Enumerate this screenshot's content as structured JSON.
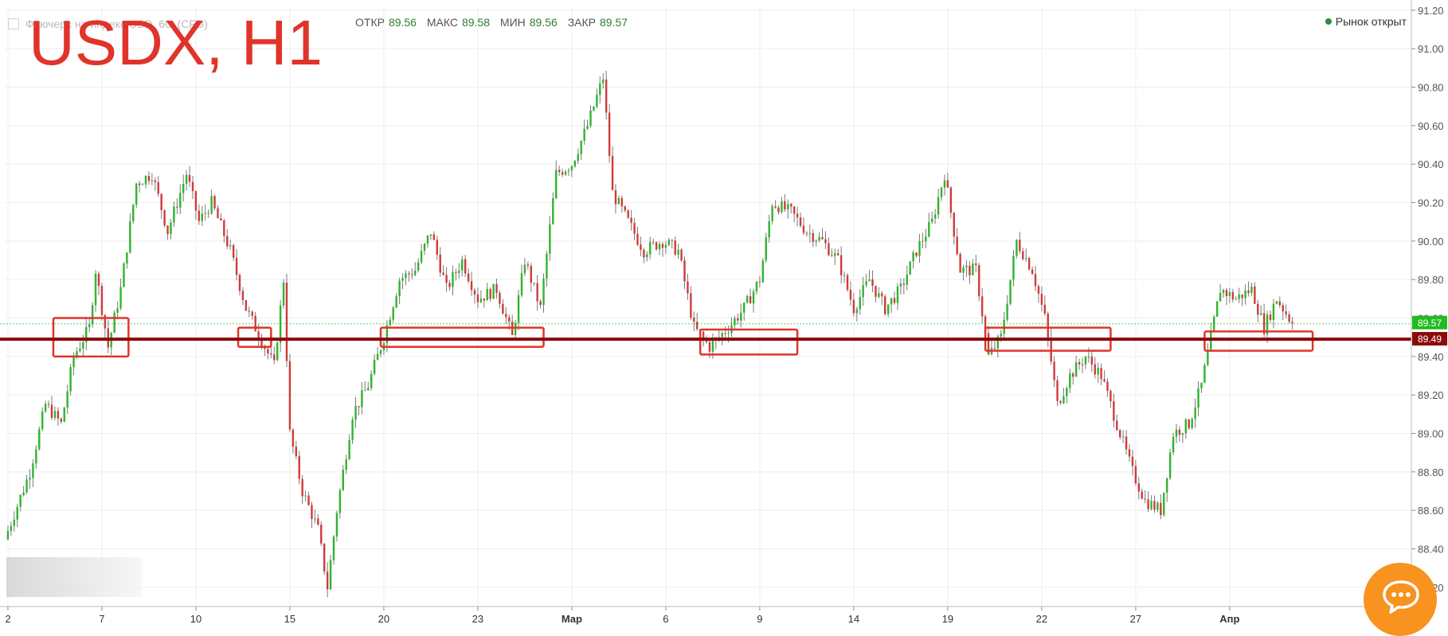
{
  "header": {
    "instrument": "Фьючерс на индекс USD, 60, (CFD)",
    "overlay_title": "USDX, H1",
    "ohlc": [
      {
        "label": "ОТКР",
        "value": "89.56"
      },
      {
        "label": "МАКС",
        "value": "89.58"
      },
      {
        "label": "МИН",
        "value": "89.56"
      },
      {
        "label": "ЗАКР",
        "value": "89.57"
      }
    ],
    "market_status": "Рынок открыт"
  },
  "colors": {
    "up": "#2db52d",
    "down": "#d13a3a",
    "level_line": "#8b0a0a",
    "zone_rect": "#e0342a",
    "current_price_badge": "#22bb22",
    "level_badge": "#8b0a0a"
  },
  "chat_widget_icon": "chat-bubble-icon",
  "chart_data": {
    "type": "candlestick",
    "timeframe": "H1",
    "ylim": [
      88.1,
      91.22
    ],
    "y_ticks": [
      "91.20",
      "91.00",
      "90.80",
      "90.60",
      "90.40",
      "90.20",
      "90.00",
      "89.80",
      "89.60",
      "89.40",
      "89.20",
      "89.00",
      "88.80",
      "88.60",
      "88.40",
      "88.20"
    ],
    "x_ticks": [
      {
        "label": "2",
        "x": 0.0
      },
      {
        "label": "7",
        "x": 3.0
      },
      {
        "label": "10",
        "x": 6.0
      },
      {
        "label": "15",
        "x": 9.0
      },
      {
        "label": "20",
        "x": 12.0
      },
      {
        "label": "23",
        "x": 15.0
      },
      {
        "label": "Мар",
        "x": 18.0
      },
      {
        "label": "6",
        "x": 21.0
      },
      {
        "label": "9",
        "x": 24.0
      },
      {
        "label": "14",
        "x": 27.0
      },
      {
        "label": "19",
        "x": 30.0
      },
      {
        "label": "22",
        "x": 33.0
      },
      {
        "label": "27",
        "x": 36.0
      },
      {
        "label": "Апр",
        "x": 39.0
      }
    ],
    "xlim": [
      -0.1,
      44.8
    ],
    "price_path": [
      [
        0.0,
        88.45
      ],
      [
        0.8,
        88.8
      ],
      [
        1.3,
        89.15
      ],
      [
        1.8,
        89.05
      ],
      [
        2.2,
        89.4
      ],
      [
        2.7,
        89.55
      ],
      [
        2.9,
        89.85
      ],
      [
        3.3,
        89.45
      ],
      [
        3.7,
        89.75
      ],
      [
        4.2,
        90.3
      ],
      [
        4.7,
        90.35
      ],
      [
        5.2,
        90.05
      ],
      [
        5.8,
        90.35
      ],
      [
        6.2,
        90.1
      ],
      [
        6.6,
        90.2
      ],
      [
        7.2,
        89.95
      ],
      [
        7.7,
        89.65
      ],
      [
        8.3,
        89.45
      ],
      [
        8.6,
        89.35
      ],
      [
        8.9,
        89.8
      ],
      [
        9.1,
        89.0
      ],
      [
        9.5,
        88.7
      ],
      [
        10.0,
        88.5
      ],
      [
        10.3,
        88.2
      ],
      [
        10.6,
        88.6
      ],
      [
        11.1,
        89.1
      ],
      [
        11.6,
        89.25
      ],
      [
        12.1,
        89.5
      ],
      [
        12.6,
        89.8
      ],
      [
        13.1,
        89.85
      ],
      [
        13.6,
        90.05
      ],
      [
        14.1,
        89.75
      ],
      [
        14.6,
        89.9
      ],
      [
        15.1,
        89.7
      ],
      [
        15.7,
        89.75
      ],
      [
        16.2,
        89.5
      ],
      [
        16.6,
        89.9
      ],
      [
        17.1,
        89.65
      ],
      [
        17.6,
        90.35
      ],
      [
        18.1,
        90.4
      ],
      [
        18.6,
        90.6
      ],
      [
        19.1,
        90.85
      ],
      [
        19.4,
        90.25
      ],
      [
        19.9,
        90.1
      ],
      [
        20.4,
        89.95
      ],
      [
        21.0,
        90.0
      ],
      [
        21.5,
        89.95
      ],
      [
        22.0,
        89.55
      ],
      [
        22.5,
        89.45
      ],
      [
        23.1,
        89.55
      ],
      [
        23.6,
        89.65
      ],
      [
        24.1,
        89.8
      ],
      [
        24.5,
        90.2
      ],
      [
        25.1,
        90.15
      ],
      [
        25.6,
        90.05
      ],
      [
        26.1,
        90.0
      ],
      [
        26.6,
        89.9
      ],
      [
        27.1,
        89.65
      ],
      [
        27.6,
        89.8
      ],
      [
        28.1,
        89.65
      ],
      [
        28.6,
        89.75
      ],
      [
        29.1,
        89.95
      ],
      [
        29.6,
        90.1
      ],
      [
        30.0,
        90.35
      ],
      [
        30.2,
        90.15
      ],
      [
        30.5,
        89.85
      ],
      [
        31.0,
        89.85
      ],
      [
        31.4,
        89.4
      ],
      [
        31.8,
        89.5
      ],
      [
        32.3,
        90.0
      ],
      [
        32.8,
        89.85
      ],
      [
        33.2,
        89.6
      ],
      [
        33.6,
        89.15
      ],
      [
        34.0,
        89.3
      ],
      [
        34.5,
        89.4
      ],
      [
        35.0,
        89.3
      ],
      [
        35.5,
        89.05
      ],
      [
        36.0,
        88.8
      ],
      [
        36.4,
        88.65
      ],
      [
        36.9,
        88.6
      ],
      [
        37.3,
        89.0
      ],
      [
        37.8,
        89.05
      ],
      [
        38.2,
        89.25
      ],
      [
        38.5,
        89.5
      ],
      [
        38.8,
        89.75
      ],
      [
        39.3,
        89.7
      ],
      [
        39.8,
        89.75
      ],
      [
        40.2,
        89.55
      ],
      [
        40.6,
        89.7
      ],
      [
        41.0,
        89.6
      ]
    ],
    "candles": {
      "start_x": 0.0,
      "end_x": 41.0,
      "step": 0.1,
      "seed": 7
    },
    "level_line": {
      "value": 89.49,
      "label": "89.49"
    },
    "current_price": {
      "value": 89.57,
      "label": "89.57"
    },
    "zones": [
      {
        "x0": 1.45,
        "x1": 3.85,
        "y0": 89.4,
        "y1": 89.6
      },
      {
        "x0": 7.35,
        "x1": 8.4,
        "y0": 89.45,
        "y1": 89.55
      },
      {
        "x0": 11.9,
        "x1": 17.1,
        "y0": 89.45,
        "y1": 89.55
      },
      {
        "x0": 22.1,
        "x1": 25.2,
        "y0": 89.41,
        "y1": 89.54
      },
      {
        "x0": 31.2,
        "x1": 35.2,
        "y0": 89.43,
        "y1": 89.55
      },
      {
        "x0": 38.2,
        "x1": 41.65,
        "y0": 89.43,
        "y1": 89.53
      }
    ]
  }
}
